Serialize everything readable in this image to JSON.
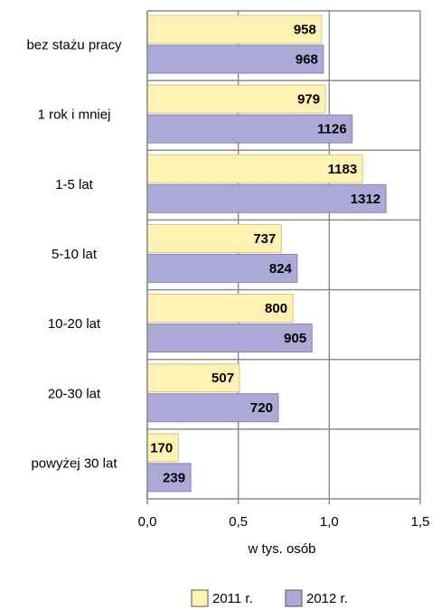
{
  "chart_data": {
    "type": "bar",
    "orientation": "horizontal",
    "xlabel": "w tys. osób",
    "categories": [
      "bez stażu pracy",
      "1 rok i mniej",
      "1-5 lat",
      "5-10 lat",
      "10-20 lat",
      "20-30 lat",
      "powyżej 30 lat"
    ],
    "series": [
      {
        "name": "2011 r.",
        "color": "#fff2b3",
        "values": [
          0.958,
          0.979,
          1.183,
          0.737,
          0.8,
          0.507,
          0.17
        ],
        "value_labels": [
          "958",
          "979",
          "1183",
          "737",
          "800",
          "507",
          "170"
        ]
      },
      {
        "name": "2012 r.",
        "color": "#aba9d6",
        "values": [
          0.968,
          1.126,
          1.312,
          0.824,
          0.905,
          0.72,
          0.239
        ],
        "value_labels": [
          "968",
          "1126",
          "1312",
          "824",
          "905",
          "720",
          "239"
        ]
      }
    ],
    "xlim": [
      0,
      1.5
    ],
    "xticks": [
      {
        "value": 0,
        "label": "0,0"
      },
      {
        "value": 0.5,
        "label": "0,5"
      },
      {
        "value": 1,
        "label": "1,0"
      },
      {
        "value": 1.5,
        "label": "1,5"
      }
    ],
    "grid": true,
    "legend": "bottom"
  }
}
